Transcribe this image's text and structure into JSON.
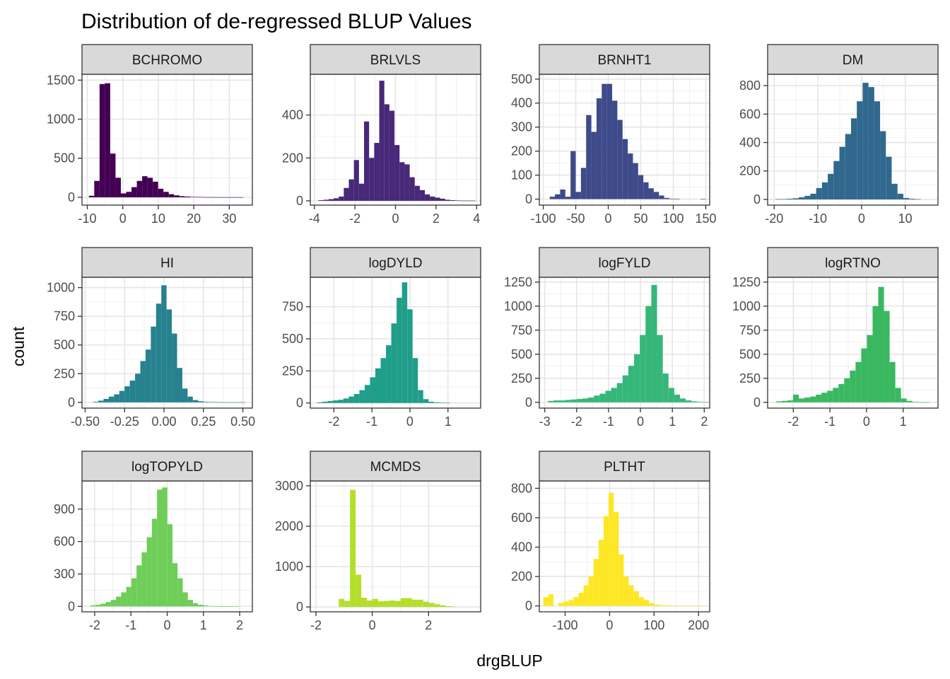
{
  "chart_data": {
    "type": "bar",
    "title": "Distribution of de-regressed BLUP Values",
    "xlabel": "drgBLUP",
    "ylabel": "count",
    "grid": true,
    "legend": "none",
    "panels": [
      {
        "name": "BCHROMO",
        "color": "#440154",
        "xlim": [
          -11.5,
          36.5
        ],
        "ylim": [
          -100,
          1575
        ],
        "xticks": [
          -10,
          0,
          10,
          20,
          30
        ],
        "xticklabels": [
          "-10",
          "0",
          "10",
          "20",
          "30"
        ],
        "yticks": [
          0,
          500,
          1000,
          1500
        ],
        "yticklabels": [
          "0",
          "500",
          "1000",
          "1500"
        ],
        "bin_start": -9.55,
        "bin_width": 1.5,
        "counts": [
          20,
          210,
          1450,
          1460,
          560,
          250,
          50,
          70,
          130,
          210,
          270,
          250,
          200,
          110,
          70,
          40,
          25,
          15,
          10,
          5,
          4,
          3,
          2,
          2,
          1,
          1,
          1,
          1,
          1,
          0,
          0,
          1
        ]
      },
      {
        "name": "BRLVLS",
        "color": "#482878",
        "xlim": [
          -4.2,
          4.2
        ],
        "ylim": [
          -20,
          590
        ],
        "xticks": [
          -4,
          -2,
          0,
          2,
          4
        ],
        "xticklabels": [
          "-4",
          "-2",
          "0",
          "2",
          "4"
        ],
        "yticks": [
          0,
          200,
          400
        ],
        "yticklabels": [
          "0",
          "200",
          "400"
        ],
        "bin_start": -3.8,
        "bin_width": 0.25,
        "counts": [
          3,
          5,
          8,
          12,
          20,
          60,
          100,
          190,
          80,
          370,
          200,
          270,
          560,
          450,
          420,
          260,
          180,
          170,
          110,
          70,
          50,
          30,
          20,
          15,
          10,
          5,
          3,
          2,
          1,
          1,
          1
        ]
      },
      {
        "name": "BRNHT1",
        "color": "#3e4a89",
        "xlim": [
          -106,
          156
        ],
        "ylim": [
          -25,
          520
        ],
        "xticks": [
          -100,
          -50,
          0,
          50,
          100,
          150
        ],
        "xticklabels": [
          "-100",
          "-50",
          "0",
          "50",
          "100",
          "150"
        ],
        "yticks": [
          0,
          100,
          200,
          300,
          400,
          500
        ],
        "yticklabels": [
          "0",
          "100",
          "200",
          "300",
          "400",
          "500"
        ],
        "bin_start": -90,
        "bin_width": 8,
        "counts": [
          10,
          20,
          40,
          10,
          200,
          30,
          130,
          350,
          280,
          420,
          480,
          480,
          410,
          330,
          250,
          190,
          150,
          100,
          70,
          45,
          30,
          15,
          5,
          2,
          1,
          0,
          0,
          0,
          0,
          1
        ]
      },
      {
        "name": "DM",
        "color": "#31688e",
        "xlim": [
          -21.5,
          17.5
        ],
        "ylim": [
          -40,
          880
        ],
        "xticks": [
          -20,
          -10,
          0,
          10
        ],
        "xticklabels": [
          "-20",
          "-10",
          "0",
          "10"
        ],
        "yticks": [
          0,
          200,
          400,
          600,
          800
        ],
        "yticklabels": [
          "0",
          "200",
          "400",
          "600",
          "800"
        ],
        "bin_start": -19.7,
        "bin_width": 1.33,
        "counts": [
          2,
          3,
          5,
          8,
          15,
          25,
          40,
          80,
          120,
          180,
          270,
          370,
          460,
          570,
          690,
          820,
          790,
          690,
          480,
          300,
          110,
          40,
          10,
          5,
          2
        ]
      },
      {
        "name": "HI",
        "color": "#26828e",
        "xlim": [
          -0.52,
          0.56
        ],
        "ylim": [
          -50,
          1090
        ],
        "xticks": [
          -0.5,
          -0.25,
          0,
          0.25,
          0.5
        ],
        "xticklabels": [
          "-0.50",
          "-0.25",
          "0.00",
          "0.25",
          "0.50"
        ],
        "yticks": [
          0,
          250,
          500,
          750,
          1000
        ],
        "yticklabels": [
          "0",
          "250",
          "500",
          "750",
          "1000"
        ],
        "bin_start": -0.45,
        "bin_width": 0.0333,
        "counts": [
          5,
          15,
          30,
          50,
          70,
          100,
          140,
          190,
          250,
          360,
          460,
          660,
          860,
          1020,
          810,
          600,
          300,
          120,
          50,
          20,
          10,
          5,
          3,
          2,
          1,
          1,
          1,
          1,
          1
        ]
      },
      {
        "name": "logDYLD",
        "color": "#1f9e89",
        "xlim": [
          -2.62,
          1.86
        ],
        "ylim": [
          -40,
          980
        ],
        "xticks": [
          -2,
          -1,
          0,
          1
        ],
        "xticklabels": [
          "-2",
          "-1",
          "0",
          "1"
        ],
        "yticks": [
          0,
          250,
          500,
          750
        ],
        "yticklabels": [
          "0",
          "250",
          "500",
          "750"
        ],
        "bin_start": -2.45,
        "bin_width": 0.14,
        "counts": [
          5,
          10,
          15,
          20,
          25,
          35,
          50,
          70,
          100,
          140,
          200,
          270,
          350,
          450,
          620,
          820,
          940,
          730,
          350,
          100,
          30,
          10,
          5,
          2,
          1
        ]
      },
      {
        "name": "logFYLD",
        "color": "#35b779",
        "xlim": [
          -3.17,
          2.17
        ],
        "ylim": [
          -60,
          1300
        ],
        "xticks": [
          -3,
          -2,
          -1,
          0,
          1,
          2
        ],
        "xticklabels": [
          "-3",
          "-2",
          "-1",
          "0",
          "1",
          "2"
        ],
        "yticks": [
          0,
          250,
          500,
          750,
          1000,
          1250
        ],
        "yticklabels": [
          "0",
          "250",
          "500",
          "750",
          "1000",
          "1250"
        ],
        "bin_start": -2.9,
        "bin_width": 0.18,
        "counts": [
          15,
          20,
          20,
          25,
          30,
          35,
          40,
          50,
          70,
          90,
          120,
          150,
          200,
          280,
          380,
          500,
          700,
          1000,
          1220,
          700,
          300,
          150,
          80,
          40,
          20,
          10,
          5,
          2
        ]
      },
      {
        "name": "logRTNO",
        "color": "#3ab860",
        "xlim": [
          -2.7,
          1.95
        ],
        "ylim": [
          -60,
          1300
        ],
        "xticks": [
          -2,
          -1,
          0,
          1
        ],
        "xticklabels": [
          "-2",
          "-1",
          "0",
          "1"
        ],
        "yticks": [
          0,
          250,
          500,
          750,
          1000,
          1250
        ],
        "yticklabels": [
          "0",
          "250",
          "500",
          "750",
          "1000",
          "1250"
        ],
        "bin_start": -2.47,
        "bin_width": 0.155,
        "counts": [
          10,
          15,
          20,
          80,
          40,
          50,
          60,
          80,
          100,
          120,
          150,
          190,
          250,
          330,
          420,
          560,
          700,
          1000,
          1200,
          950,
          420,
          150,
          40,
          15,
          5,
          2,
          1
        ]
      },
      {
        "name": "logTOPYLD",
        "color": "#6ece58",
        "xlim": [
          -2.35,
          2.35
        ],
        "ylim": [
          -50,
          1160
        ],
        "xticks": [
          -2,
          -1,
          0,
          1,
          2
        ],
        "xticklabels": [
          "-2",
          "-1",
          "0",
          "1",
          "2"
        ],
        "yticks": [
          0,
          300,
          600,
          900
        ],
        "yticklabels": [
          "0",
          "300",
          "600",
          "900"
        ],
        "bin_start": -2.12,
        "bin_width": 0.1416,
        "counts": [
          10,
          15,
          25,
          40,
          60,
          90,
          130,
          180,
          260,
          380,
          500,
          640,
          810,
          1080,
          1100,
          760,
          400,
          260,
          130,
          60,
          30,
          15,
          8,
          4,
          2,
          1,
          1,
          1,
          1
        ]
      },
      {
        "name": "MCMDS",
        "color": "#b5de2b",
        "xlim": [
          -2.2,
          3.85
        ],
        "ylim": [
          -120,
          3120
        ],
        "xticks": [
          -2,
          0,
          2
        ],
        "xticklabels": [
          "-2",
          "0",
          "2"
        ],
        "yticks": [
          0,
          1000,
          2000,
          3000
        ],
        "yticklabels": [
          "0",
          "1000",
          "2000",
          "3000"
        ],
        "bin_start": -1.19,
        "bin_width": 0.2,
        "counts": [
          200,
          150,
          2900,
          800,
          230,
          160,
          200,
          140,
          150,
          160,
          150,
          220,
          220,
          180,
          180,
          130,
          100,
          70,
          40,
          20,
          10
        ]
      },
      {
        "name": "PLTHT",
        "color": "#fde725",
        "xlim": [
          -158,
          225
        ],
        "ylim": [
          -40,
          850
        ],
        "xticks": [
          -100,
          0,
          100,
          200
        ],
        "xticklabels": [
          "-100",
          "0",
          "100",
          "200"
        ],
        "yticks": [
          0,
          200,
          400,
          600,
          800
        ],
        "yticklabels": [
          "0",
          "200",
          "400",
          "600",
          "800"
        ],
        "bin_start": -149,
        "bin_width": 11.3,
        "counts": [
          60,
          80,
          0,
          20,
          30,
          40,
          60,
          90,
          140,
          200,
          320,
          450,
          610,
          770,
          640,
          350,
          200,
          140,
          100,
          60,
          40,
          20,
          10,
          5,
          5,
          3,
          2,
          1,
          1,
          1,
          1,
          1
        ]
      }
    ]
  }
}
